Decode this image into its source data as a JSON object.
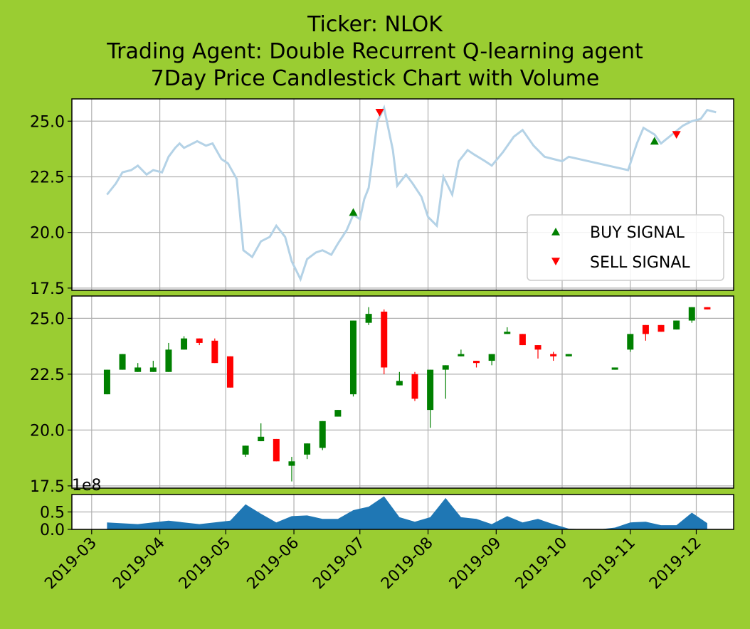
{
  "title": {
    "line1": "Ticker: NLOK",
    "line2": "Trading Agent: Double Recurrent Q-learning agent",
    "line3": "7Day Price Candlestick Chart with Volume"
  },
  "colors": {
    "background": "#9acd32",
    "price_line": "#b4d2e6",
    "up": "#008000",
    "down": "#ff0000",
    "volume": "#1f77b4",
    "buy_marker": "#008000",
    "sell_marker": "#ff0000",
    "grid": "#b0b0b0"
  },
  "chart_data": [
    {
      "type": "line",
      "panel": "price",
      "ylim": [
        17.4,
        26.0
      ],
      "grid": true,
      "y_ticks": [
        "17.5",
        "20.0",
        "22.5",
        "25.0"
      ],
      "legend": {
        "placement": "lower-right",
        "entries": [
          "BUY SIGNAL",
          "SELL SIGNAL"
        ]
      },
      "series": [
        {
          "kind": "close_price",
          "x": [
            "2019-03-08",
            "2019-03-12",
            "2019-03-15",
            "2019-03-19",
            "2019-03-22",
            "2019-03-26",
            "2019-03-29",
            "2019-04-02",
            "2019-04-05",
            "2019-04-08",
            "2019-04-10",
            "2019-04-12",
            "2019-04-16",
            "2019-04-18",
            "2019-04-22",
            "2019-04-25",
            "2019-04-29",
            "2019-05-02",
            "2019-05-06",
            "2019-05-09",
            "2019-05-13",
            "2019-05-17",
            "2019-05-21",
            "2019-05-24",
            "2019-05-28",
            "2019-05-31",
            "2019-06-04",
            "2019-06-07",
            "2019-06-11",
            "2019-06-14",
            "2019-06-18",
            "2019-06-21",
            "2019-06-25",
            "2019-06-28",
            "2019-07-01",
            "2019-07-03",
            "2019-07-05",
            "2019-07-09",
            "2019-07-12",
            "2019-07-16",
            "2019-07-18",
            "2019-07-22",
            "2019-07-25",
            "2019-07-29",
            "2019-08-01",
            "2019-08-05",
            "2019-08-08",
            "2019-08-12",
            "2019-08-15",
            "2019-08-19",
            "2019-08-22",
            "2019-08-27",
            "2019-08-30",
            "2019-09-04",
            "2019-09-09",
            "2019-09-13",
            "2019-09-18",
            "2019-09-23",
            "2019-09-27",
            "2019-10-01",
            "2019-10-04",
            "2019-10-31",
            "2019-11-04",
            "2019-11-07",
            "2019-11-12",
            "2019-11-15",
            "2019-11-20",
            "2019-11-25",
            "2019-11-29",
            "2019-12-03",
            "2019-12-06",
            "2019-12-10"
          ],
          "y": [
            21.7,
            22.2,
            22.7,
            22.8,
            23.0,
            22.6,
            22.8,
            22.7,
            23.4,
            23.8,
            24.0,
            23.8,
            24.0,
            24.1,
            23.9,
            24.0,
            23.3,
            23.1,
            22.4,
            19.2,
            18.9,
            19.6,
            19.8,
            20.3,
            19.8,
            18.7,
            17.9,
            18.8,
            19.1,
            19.2,
            19.0,
            19.5,
            20.1,
            20.8,
            20.6,
            21.5,
            22.0,
            25.0,
            25.6,
            23.7,
            22.1,
            22.6,
            22.2,
            21.6,
            20.7,
            20.3,
            22.5,
            21.7,
            23.2,
            23.7,
            23.5,
            23.2,
            23.0,
            23.6,
            24.3,
            24.6,
            23.9,
            23.4,
            23.3,
            23.2,
            23.4,
            22.8,
            24.0,
            24.7,
            24.4,
            24.0,
            24.4,
            24.8,
            25.0,
            25.1,
            25.5,
            25.4
          ]
        },
        {
          "kind": "buy_signals",
          "name": "BUY SIGNAL",
          "x": [
            "2019-06-28",
            "2019-11-12"
          ],
          "y": [
            20.9,
            24.1
          ]
        },
        {
          "kind": "sell_signals",
          "name": "SELL SIGNAL",
          "x": [
            "2019-07-10",
            "2019-11-22"
          ],
          "y": [
            25.4,
            24.4
          ]
        }
      ]
    },
    {
      "type": "candlestick",
      "panel": "candles",
      "ylim": [
        17.4,
        26.0
      ],
      "grid": true,
      "y_ticks": [
        "17.5",
        "20.0",
        "22.5",
        "25.0"
      ],
      "candles": [
        {
          "date": "2019-03-08",
          "open": 21.6,
          "close": 22.7,
          "high": 22.7,
          "low": 21.6
        },
        {
          "date": "2019-03-15",
          "open": 22.7,
          "close": 23.4,
          "high": 23.4,
          "low": 22.7
        },
        {
          "date": "2019-03-22",
          "open": 22.6,
          "close": 22.8,
          "high": 23.0,
          "low": 22.6
        },
        {
          "date": "2019-03-29",
          "open": 22.6,
          "close": 22.8,
          "high": 23.1,
          "low": 22.6
        },
        {
          "date": "2019-04-05",
          "open": 22.6,
          "close": 23.6,
          "high": 23.9,
          "low": 22.6
        },
        {
          "date": "2019-04-12",
          "open": 23.6,
          "close": 24.1,
          "high": 24.2,
          "low": 23.6
        },
        {
          "date": "2019-04-19",
          "open": 24.1,
          "close": 23.9,
          "high": 24.1,
          "low": 23.8
        },
        {
          "date": "2019-04-26",
          "open": 24.0,
          "close": 23.0,
          "high": 24.1,
          "low": 23.0
        },
        {
          "date": "2019-05-03",
          "open": 23.3,
          "close": 21.9,
          "high": 23.3,
          "low": 21.9
        },
        {
          "date": "2019-05-10",
          "open": 18.9,
          "close": 19.3,
          "high": 19.3,
          "low": 18.8
        },
        {
          "date": "2019-05-17",
          "open": 19.5,
          "close": 19.7,
          "high": 20.3,
          "low": 19.5
        },
        {
          "date": "2019-05-24",
          "open": 19.6,
          "close": 18.6,
          "high": 19.6,
          "low": 18.6
        },
        {
          "date": "2019-05-31",
          "open": 18.4,
          "close": 18.6,
          "high": 18.8,
          "low": 17.7
        },
        {
          "date": "2019-06-07",
          "open": 18.9,
          "close": 19.4,
          "high": 19.4,
          "low": 18.7
        },
        {
          "date": "2019-06-14",
          "open": 19.2,
          "close": 20.4,
          "high": 20.4,
          "low": 19.1
        },
        {
          "date": "2019-06-21",
          "open": 20.6,
          "close": 20.9,
          "high": 20.9,
          "low": 20.6
        },
        {
          "date": "2019-06-28",
          "open": 21.6,
          "close": 24.9,
          "high": 24.9,
          "low": 21.5
        },
        {
          "date": "2019-07-05",
          "open": 24.8,
          "close": 25.2,
          "high": 25.5,
          "low": 24.7
        },
        {
          "date": "2019-07-12",
          "open": 25.3,
          "close": 22.8,
          "high": 25.4,
          "low": 22.5
        },
        {
          "date": "2019-07-19",
          "open": 22.0,
          "close": 22.2,
          "high": 22.6,
          "low": 22.0
        },
        {
          "date": "2019-07-26",
          "open": 22.5,
          "close": 21.4,
          "high": 22.6,
          "low": 21.3
        },
        {
          "date": "2019-08-02",
          "open": 20.9,
          "close": 22.7,
          "high": 22.7,
          "low": 20.1
        },
        {
          "date": "2019-08-09",
          "open": 22.7,
          "close": 22.9,
          "high": 22.9,
          "low": 21.4
        },
        {
          "date": "2019-08-16",
          "open": 23.3,
          "close": 23.4,
          "high": 23.6,
          "low": 23.3
        },
        {
          "date": "2019-08-23",
          "open": 23.1,
          "close": 23.0,
          "high": 23.1,
          "low": 22.8
        },
        {
          "date": "2019-08-30",
          "open": 23.1,
          "close": 23.4,
          "high": 23.4,
          "low": 22.9
        },
        {
          "date": "2019-09-06",
          "open": 24.3,
          "close": 24.4,
          "high": 24.6,
          "low": 24.3
        },
        {
          "date": "2019-09-13",
          "open": 24.3,
          "close": 23.8,
          "high": 24.3,
          "low": 23.8
        },
        {
          "date": "2019-09-20",
          "open": 23.8,
          "close": 23.6,
          "high": 23.8,
          "low": 23.2
        },
        {
          "date": "2019-09-27",
          "open": 23.4,
          "close": 23.3,
          "high": 23.5,
          "low": 23.1
        },
        {
          "date": "2019-10-04",
          "open": 23.3,
          "close": 23.4,
          "high": 23.4,
          "low": 23.3
        },
        {
          "date": "2019-10-25",
          "open": 22.7,
          "close": 22.8,
          "high": 22.8,
          "low": 22.7
        },
        {
          "date": "2019-11-01",
          "open": 23.6,
          "close": 24.3,
          "high": 24.3,
          "low": 23.5
        },
        {
          "date": "2019-11-08",
          "open": 24.7,
          "close": 24.3,
          "high": 24.7,
          "low": 24.0
        },
        {
          "date": "2019-11-15",
          "open": 24.7,
          "close": 24.4,
          "high": 24.7,
          "low": 24.4
        },
        {
          "date": "2019-11-22",
          "open": 24.5,
          "close": 24.9,
          "high": 24.9,
          "low": 24.5
        },
        {
          "date": "2019-11-29",
          "open": 24.9,
          "close": 25.5,
          "high": 25.5,
          "low": 24.8
        },
        {
          "date": "2019-12-06",
          "open": 25.5,
          "close": 25.4,
          "high": 25.5,
          "low": 25.4
        }
      ]
    },
    {
      "type": "area",
      "panel": "volume",
      "ylim": [
        0,
        1.0
      ],
      "grid": true,
      "y_ticks": [
        "0.0",
        "0.5"
      ],
      "offset_label": "1e8",
      "x": [
        "2019-03-08",
        "2019-03-22",
        "2019-04-05",
        "2019-04-19",
        "2019-05-03",
        "2019-05-10",
        "2019-05-17",
        "2019-05-24",
        "2019-05-31",
        "2019-06-07",
        "2019-06-14",
        "2019-06-21",
        "2019-06-28",
        "2019-07-05",
        "2019-07-12",
        "2019-07-19",
        "2019-07-26",
        "2019-08-02",
        "2019-08-09",
        "2019-08-16",
        "2019-08-23",
        "2019-08-30",
        "2019-09-06",
        "2019-09-13",
        "2019-09-20",
        "2019-09-27",
        "2019-10-04",
        "2019-10-11",
        "2019-10-18",
        "2019-10-25",
        "2019-11-01",
        "2019-11-08",
        "2019-11-15",
        "2019-11-22",
        "2019-11-29",
        "2019-12-06"
      ],
      "values": [
        0.2,
        0.15,
        0.25,
        0.15,
        0.25,
        0.72,
        0.45,
        0.2,
        0.38,
        0.4,
        0.3,
        0.3,
        0.55,
        0.65,
        0.95,
        0.35,
        0.22,
        0.35,
        0.9,
        0.35,
        0.3,
        0.15,
        0.38,
        0.2,
        0.3,
        0.15,
        0.02,
        0.0,
        0.0,
        0.05,
        0.2,
        0.22,
        0.12,
        0.12,
        0.48,
        0.18
      ]
    }
  ],
  "x_axis": {
    "range": [
      "2019-02-20",
      "2019-12-18"
    ],
    "ticks": [
      "2019-03",
      "2019-04",
      "2019-05",
      "2019-06",
      "2019-07",
      "2019-08",
      "2019-09",
      "2019-10",
      "2019-11",
      "2019-12"
    ]
  }
}
